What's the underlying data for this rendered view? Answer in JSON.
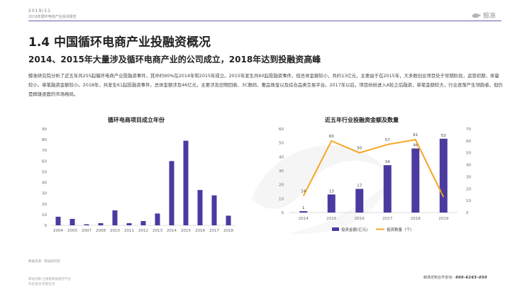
{
  "header": {
    "date": "2019/11",
    "subtitle": "2019年循环电商产业投资报告",
    "logo_text": "鲸准",
    "logo_icon": "whale-icon"
  },
  "title": "1.4 中国循环电商产业投融资概况",
  "subtitle": "2014、2015年大量涉及循环电商产业的公司成立，2018年达到投融资高峰",
  "paragraph": "鲸准研究院分析了近五年共255起循环电商产业投融资事件，其中约90%在2014年和2015年成立。2015年发生共60起投融资事件，但总体金额较小，共约13亿元，主要由于在2015年，大多数创业项目处于早期阶段，运营初期，体量较小，单笔融资金额较小。2018年，共发生61起投融资事件，总体金额涉及46亿元，主要涉及旧物回收、3C数码、奢品珠宝以及综合品类交易平台。2017年以后，项目纷纷进入A轮之后融资，单笔金额较大，行业逐渐产生领跑者，但仍是群雄逐鹿的市场格局。",
  "colors": {
    "accent": "#6d5cae",
    "bar": "#4b3aa0",
    "line": "#f5a623"
  },
  "chart_data": [
    {
      "type": "bar",
      "title": "循环电商项目成立年份",
      "categories": [
        "2004",
        "2005",
        "2007",
        "2008",
        "2010",
        "2011",
        "2012",
        "2013",
        "2014",
        "2015",
        "2016",
        "2017",
        "2018"
      ],
      "values": [
        8,
        6,
        1,
        2,
        14,
        2,
        4,
        11,
        60,
        79,
        33,
        28,
        9
      ],
      "ylim": [
        0,
        90
      ],
      "yticks": [
        "0",
        "10",
        "20",
        "30",
        "40",
        "50",
        "60",
        "70",
        "80",
        "90"
      ],
      "grid": false
    },
    {
      "type": "bar+line",
      "title": "近五年行业投融资金额及数量",
      "categories": [
        "2014",
        "2015",
        "2016",
        "2017",
        "2018",
        "2019"
      ],
      "series": [
        {
          "name": "投资金额(亿元)",
          "type": "bar",
          "axis": "left",
          "values": [
            1,
            13,
            17,
            34,
            46,
            53
          ]
        },
        {
          "name": "投资数量（个）",
          "type": "line",
          "axis": "right",
          "values": [
            14,
            60,
            50,
            57,
            61,
            13
          ]
        }
      ],
      "ylim_left": [
        0,
        60
      ],
      "ylim_right": [
        0,
        70
      ],
      "yticks_left": [
        "0",
        "10",
        "20",
        "30",
        "40",
        "50",
        "60"
      ],
      "yticks_right": [
        "0",
        "10",
        "20",
        "30",
        "40",
        "50",
        "60",
        "70"
      ],
      "legend_position": "bottom"
    }
  ],
  "footer": {
    "source": "数据来源：鲸准研究院",
    "left_line1": "鲸准洞察·全维度数据服务平台",
    "left_line2": "科技驱动·智能投资",
    "hotline_label": "鲸准定制合作咨询：",
    "hotline_number": "400-6265-050"
  }
}
